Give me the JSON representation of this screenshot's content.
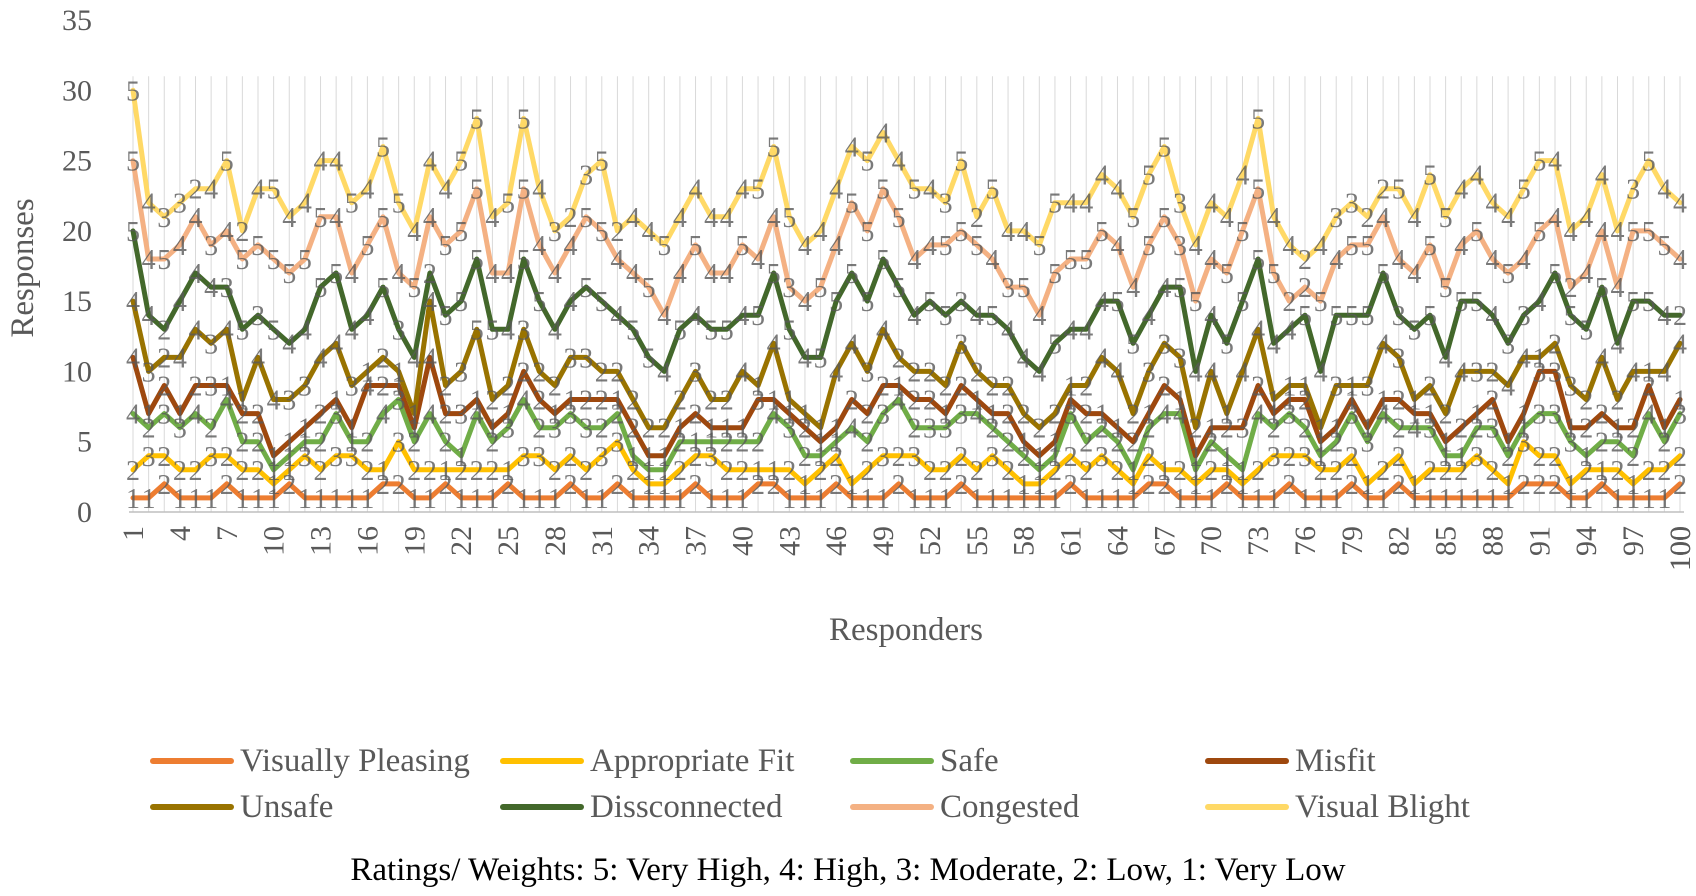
{
  "chart_data": {
    "type": "line",
    "stacked": true,
    "title": "",
    "xlabel": "Responders",
    "ylabel": "Responses",
    "ylim": [
      0,
      35
    ],
    "yticks": [
      0,
      5,
      10,
      15,
      20,
      25,
      30,
      35
    ],
    "xtick_step": 3,
    "x_count": 100,
    "grid": false,
    "legend_position": "bottom",
    "data_labels": true,
    "series": [
      {
        "name": "Visually Pleasing",
        "color": "#ED7D31",
        "values": [
          1,
          1,
          2,
          1,
          1,
          1,
          2,
          1,
          1,
          1,
          2,
          1,
          1,
          1,
          1,
          1,
          2,
          2,
          1,
          1,
          2,
          1,
          1,
          1,
          2,
          1,
          1,
          1,
          2,
          1,
          1,
          2,
          1,
          1,
          1,
          1,
          2,
          1,
          1,
          1,
          2,
          2,
          1,
          1,
          1,
          2,
          1,
          1,
          1,
          2,
          1,
          1,
          1,
          2,
          1,
          1,
          1,
          1,
          1,
          1,
          2,
          1,
          1,
          1,
          1,
          2,
          2,
          1,
          1,
          1,
          2,
          1,
          1,
          1,
          2,
          1,
          1,
          1,
          2,
          1,
          1,
          2,
          1,
          1,
          1,
          1,
          1,
          1,
          1,
          2,
          2,
          2,
          1,
          1,
          2,
          1,
          1,
          1,
          1,
          2
        ]
      },
      {
        "name": "Appropriate Fit",
        "color": "#FFC000",
        "values": [
          2,
          3,
          2,
          2,
          2,
          3,
          2,
          2,
          2,
          1,
          1,
          3,
          2,
          3,
          3,
          2,
          1,
          3,
          2,
          2,
          1,
          2,
          2,
          2,
          1,
          3,
          3,
          2,
          2,
          2,
          3,
          3,
          2,
          1,
          1,
          2,
          2,
          3,
          2,
          2,
          1,
          1,
          2,
          1,
          2,
          2,
          1,
          2,
          3,
          2,
          3,
          2,
          2,
          2,
          2,
          3,
          2,
          1,
          1,
          2,
          2,
          2,
          3,
          2,
          1,
          2,
          1,
          2,
          1,
          2,
          1,
          1,
          2,
          3,
          2,
          3,
          2,
          2,
          2,
          1,
          2,
          2,
          1,
          2,
          2,
          2,
          3,
          2,
          1,
          3,
          2,
          2,
          1,
          2,
          1,
          2,
          1,
          2,
          2,
          2
        ]
      },
      {
        "name": "Safe",
        "color": "#70AD47",
        "values": [
          4,
          2,
          3,
          3,
          4,
          2,
          4,
          2,
          2,
          1,
          1,
          1,
          2,
          3,
          1,
          2,
          4,
          3,
          2,
          4,
          2,
          1,
          4,
          2,
          3,
          4,
          2,
          3,
          3,
          3,
          2,
          2,
          1,
          1,
          1,
          2,
          1,
          1,
          2,
          2,
          2,
          4,
          3,
          2,
          1,
          1,
          4,
          2,
          3,
          4,
          2,
          3,
          3,
          3,
          4,
          2,
          2,
          2,
          1,
          1,
          3,
          2,
          2,
          2,
          1,
          2,
          4,
          4,
          1,
          2,
          1,
          1,
          4,
          2,
          3,
          2,
          1,
          2,
          3,
          3,
          4,
          2,
          4,
          3,
          1,
          1,
          2,
          3,
          2,
          1,
          3,
          3,
          3,
          1,
          2,
          2,
          2,
          4,
          2,
          3
        ]
      },
      {
        "name": "Misfit",
        "color": "#9E480E",
        "values": [
          4,
          1,
          2,
          1,
          2,
          3,
          1,
          2,
          2,
          1,
          1,
          1,
          2,
          1,
          1,
          4,
          2,
          1,
          1,
          4,
          2,
          3,
          1,
          1,
          1,
          2,
          2,
          1,
          1,
          2,
          2,
          1,
          2,
          1,
          1,
          1,
          2,
          1,
          1,
          1,
          3,
          1,
          1,
          2,
          1,
          1,
          2,
          2,
          2,
          1,
          2,
          2,
          1,
          2,
          1,
          1,
          2,
          1,
          1,
          1,
          1,
          2,
          1,
          1,
          2,
          1,
          2,
          1,
          1,
          1,
          2,
          3,
          2,
          1,
          1,
          2,
          1,
          1,
          1,
          1,
          1,
          2,
          1,
          1,
          1,
          2,
          1,
          2,
          1,
          1,
          3,
          3,
          1,
          2,
          2,
          1,
          2,
          2,
          1,
          1
        ]
      },
      {
        "name": "Unsafe",
        "color": "#997300",
        "values": [
          4,
          3,
          2,
          4,
          4,
          3,
          4,
          1,
          4,
          4,
          3,
          3,
          4,
          4,
          3,
          1,
          2,
          1,
          1,
          4,
          2,
          3,
          5,
          2,
          2,
          3,
          2,
          2,
          3,
          3,
          2,
          2,
          2,
          2,
          2,
          2,
          3,
          2,
          2,
          4,
          1,
          4,
          1,
          1,
          1,
          4,
          4,
          3,
          4,
          2,
          2,
          2,
          2,
          3,
          2,
          2,
          2,
          2,
          2,
          2,
          1,
          2,
          4,
          4,
          2,
          3,
          3,
          3,
          2,
          4,
          1,
          4,
          4,
          1,
          1,
          1,
          1,
          3,
          1,
          3,
          4,
          3,
          1,
          2,
          2,
          4,
          3,
          2,
          4,
          4,
          1,
          2,
          3,
          2,
          4,
          2,
          4,
          1,
          4,
          4
        ]
      },
      {
        "name": "Dissconnected",
        "color": "#43682B",
        "values": [
          5,
          4,
          2,
          4,
          4,
          4,
          3,
          5,
          3,
          5,
          4,
          4,
          5,
          5,
          4,
          4,
          5,
          3,
          4,
          2,
          5,
          5,
          5,
          5,
          4,
          5,
          5,
          4,
          4,
          5,
          5,
          4,
          5,
          5,
          4,
          5,
          4,
          5,
          5,
          4,
          5,
          5,
          5,
          4,
          5,
          5,
          5,
          5,
          5,
          5,
          4,
          5,
          5,
          3,
          4,
          5,
          4,
          4,
          4,
          5,
          4,
          4,
          4,
          5,
          5,
          4,
          4,
          5,
          4,
          4,
          5,
          5,
          5,
          4,
          4,
          5,
          4,
          5,
          5,
          5,
          5,
          3,
          5,
          5,
          4,
          5,
          5,
          4,
          3,
          3,
          4,
          5,
          5,
          5,
          5,
          4,
          5,
          5,
          4,
          2
        ]
      },
      {
        "name": "Congested",
        "color": "#F4B183",
        "values": [
          5,
          4,
          5,
          4,
          4,
          3,
          4,
          5,
          5,
          5,
          5,
          5,
          5,
          4,
          4,
          5,
          5,
          4,
          5,
          4,
          5,
          5,
          5,
          4,
          4,
          5,
          4,
          4,
          4,
          5,
          5,
          4,
          4,
          5,
          4,
          4,
          5,
          4,
          4,
          5,
          4,
          4,
          3,
          4,
          5,
          4,
          5,
          5,
          5,
          5,
          4,
          4,
          5,
          5,
          5,
          4,
          3,
          5,
          4,
          5,
          5,
          5,
          5,
          4,
          4,
          5,
          5,
          3,
          5,
          4,
          5,
          5,
          5,
          5,
          2,
          2,
          5,
          4,
          5,
          5,
          4,
          4,
          4,
          5,
          5,
          4,
          5,
          4,
          5,
          4,
          5,
          4,
          2,
          4,
          4,
          4,
          5,
          5,
          5,
          4
        ]
      },
      {
        "name": "Visual Blight",
        "color": "#FFD966",
        "values": [
          5,
          4,
          3,
          3,
          2,
          4,
          5,
          2,
          4,
          5,
          4,
          4,
          4,
          4,
          5,
          4,
          5,
          5,
          4,
          4,
          4,
          5,
          5,
          4,
          5,
          5,
          4,
          3,
          2,
          3,
          5,
          2,
          4,
          4,
          5,
          4,
          4,
          4,
          4,
          4,
          5,
          5,
          5,
          4,
          4,
          4,
          4,
          5,
          4,
          4,
          5,
          4,
          3,
          5,
          2,
          5,
          4,
          4,
          5,
          5,
          4,
          4,
          4,
          4,
          5,
          5,
          5,
          3,
          4,
          4,
          4,
          4,
          5,
          4,
          4,
          2,
          4,
          3,
          3,
          2,
          2,
          5,
          4,
          5,
          5,
          4,
          4,
          4,
          4,
          5,
          5,
          4,
          4,
          4,
          4,
          4,
          3,
          5,
          4,
          4
        ]
      }
    ]
  },
  "footnote": "Ratings/ Weights: 5: Very High, 4: High, 3: Moderate, 2: Low, 1: Very Low"
}
